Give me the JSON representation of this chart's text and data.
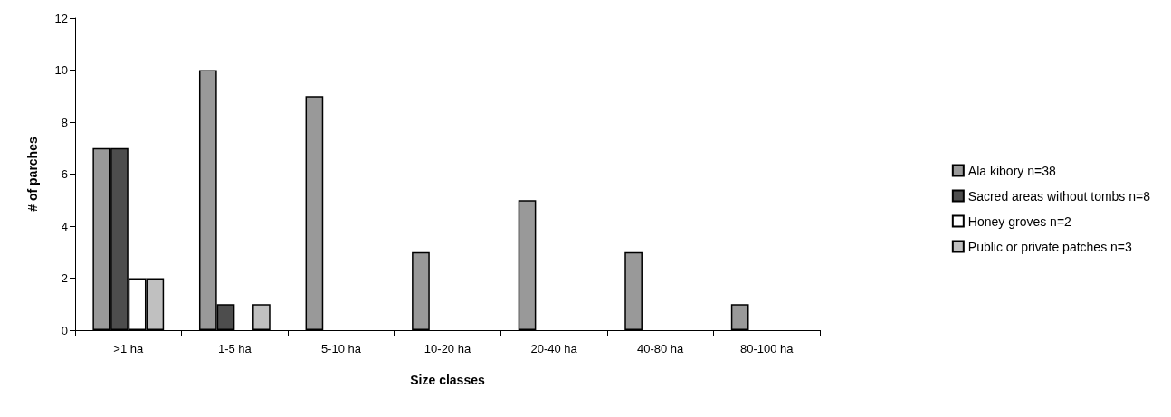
{
  "chart_data": {
    "type": "bar",
    "xlabel": "Size classes",
    "ylabel": "# of parches",
    "categories": [
      ">1 ha",
      "1-5 ha",
      "5-10 ha",
      "10-20 ha",
      "20-40 ha",
      "40-80 ha",
      "80-100 ha"
    ],
    "series": [
      {
        "name": "Ala kibory n=38",
        "color": "#999999",
        "values": [
          7,
          10,
          9,
          3,
          5,
          3,
          1
        ]
      },
      {
        "name": "Sacred areas without tombs n=8",
        "color": "#4d4d4d",
        "values": [
          7,
          1,
          0,
          0,
          0,
          0,
          0
        ]
      },
      {
        "name": "Honey groves n=2",
        "color": "#ffffff",
        "values": [
          2,
          0,
          0,
          0,
          0,
          0,
          0
        ]
      },
      {
        "name": "Public or private patches n=3",
        "color": "#c0c0c0",
        "values": [
          2,
          1,
          0,
          0,
          0,
          0,
          0
        ]
      }
    ],
    "ylim": [
      0,
      12
    ],
    "yticks": [
      0,
      2,
      4,
      6,
      8,
      10,
      12
    ],
    "grid": false,
    "legend": "right"
  }
}
